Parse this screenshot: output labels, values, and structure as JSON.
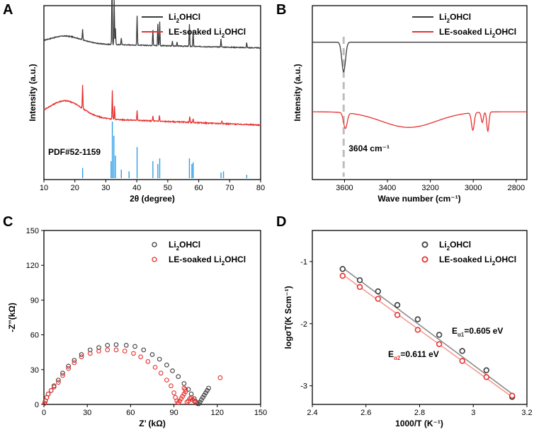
{
  "colors": {
    "black": "#000000",
    "dark": "#3c3c3c",
    "red": "#e8312f",
    "pdf": "#2f9fe6",
    "dash": "#bdbdbd",
    "fit_gray": "#8c8c8c",
    "fit_red": "#f59a90"
  },
  "chart_data": [
    {
      "panel": "A",
      "type": "line",
      "xlabel": "2θ (degree)",
      "ylabel": "Intensity (a.u.)",
      "xlim": [
        10,
        80
      ],
      "xticks": [
        10,
        20,
        30,
        40,
        50,
        60,
        70,
        80
      ],
      "series": [
        {
          "name": "Li2OHCl",
          "label": "Li",
          "sub": "2",
          "tail": "OHCl",
          "color": "#3c3c3c",
          "offset": 0.74,
          "base": 0.8,
          "hump": {
            "center": 17,
            "height": 0.75,
            "width": 7
          },
          "noise": 0.08,
          "peaks": [
            [
              22.5,
              1.1
            ],
            [
              32.0,
              6.3
            ],
            [
              32.7,
              4.5
            ],
            [
              33.1,
              1.6
            ],
            [
              35.0,
              0.7
            ],
            [
              40.1,
              3.0
            ],
            [
              45.2,
              1.6
            ],
            [
              46.8,
              2.2
            ],
            [
              47.4,
              2.4
            ],
            [
              51.5,
              0.5
            ],
            [
              53.0,
              0.4
            ],
            [
              57.0,
              2.2
            ],
            [
              58.2,
              1.6
            ],
            [
              67.2,
              0.8
            ],
            [
              75.5,
              0.5
            ]
          ]
        },
        {
          "name": "LE-soaked Li2OHCl",
          "label": "LE-soaked Li",
          "sub": "2",
          "tail": "OHCl",
          "color": "#e8312f",
          "offset": 0.27,
          "base": 1.6,
          "hump": {
            "center": 17,
            "height": 1.7,
            "width": 7.5
          },
          "noise": 0.1,
          "peaks": [
            [
              22.5,
              2.4
            ],
            [
              32.1,
              2.9
            ],
            [
              32.8,
              1.3
            ],
            [
              40.1,
              1.0
            ],
            [
              45.2,
              0.5
            ],
            [
              47.3,
              0.6
            ],
            [
              57.1,
              0.6
            ],
            [
              58.2,
              0.4
            ],
            [
              67.5,
              0.3
            ]
          ]
        }
      ],
      "reference": {
        "label": "PDF#52-1159",
        "color": "#2f9fe6",
        "lines": [
          [
            22.5,
            0.18
          ],
          [
            31.7,
            0.3
          ],
          [
            32.1,
            1.0
          ],
          [
            32.6,
            0.75
          ],
          [
            33.1,
            0.4
          ],
          [
            35.0,
            0.15
          ],
          [
            37.5,
            0.12
          ],
          [
            40.1,
            0.55
          ],
          [
            45.2,
            0.3
          ],
          [
            46.8,
            0.25
          ],
          [
            47.4,
            0.35
          ],
          [
            57.0,
            0.35
          ],
          [
            57.8,
            0.25
          ],
          [
            58.2,
            0.28
          ],
          [
            67.2,
            0.1
          ],
          [
            68.0,
            0.12
          ],
          [
            75.5,
            0.06
          ]
        ]
      }
    },
    {
      "panel": "B",
      "type": "line",
      "xlabel": "Wave number (cm⁻¹)",
      "ylabel": "Intensity (a.u.)",
      "xlim": [
        3750,
        2750
      ],
      "xticks": [
        3600,
        3400,
        3200,
        3000,
        2800
      ],
      "annotation": {
        "text": "3604 cm⁻¹",
        "x": 3604
      },
      "series": [
        {
          "name": "Li2OHCl",
          "label": "Li",
          "sub": "2",
          "tail": "OHCl",
          "color": "#3c3c3c",
          "baseline": 0.79,
          "bands": [
            [
              3604,
              0.17,
              12
            ]
          ]
        },
        {
          "name": "LE-soaked Li2OHCl",
          "label": "LE-soaked Li",
          "sub": "2",
          "tail": "OHCl",
          "color": "#e8312f",
          "baseline": 0.39,
          "broad": {
            "center": 3300,
            "depth": 0.09,
            "width": 180
          },
          "bands": [
            [
              3596,
              0.09,
              12
            ],
            [
              3002,
              0.1,
              9
            ],
            [
              2958,
              0.06,
              7
            ],
            [
              2932,
              0.11,
              7
            ]
          ]
        }
      ]
    },
    {
      "panel": "C",
      "type": "scatter",
      "xlabel": "Z’ (kΩ)",
      "ylabel": "-Z’’(kΩ)",
      "xlim": [
        0,
        150
      ],
      "ylim": [
        0,
        150
      ],
      "xticks": [
        0,
        30,
        60,
        90,
        120,
        150
      ],
      "yticks": [
        0,
        30,
        60,
        90,
        120,
        150
      ],
      "series": [
        {
          "name": "Li2OHCl",
          "label": "Li",
          "sub": "2",
          "tail": "OHCl",
          "color": "#3c3c3c",
          "points": [
            [
              0.5,
              1
            ],
            [
              1,
              3
            ],
            [
              2,
              6
            ],
            [
              3,
              9
            ],
            [
              5,
              12
            ],
            [
              7,
              16
            ],
            [
              10,
              21
            ],
            [
              13,
              27
            ],
            [
              17,
              33
            ],
            [
              21,
              38
            ],
            [
              26,
              43
            ],
            [
              32,
              47
            ],
            [
              38,
              49
            ],
            [
              44,
              51
            ],
            [
              50,
              51.5
            ],
            [
              57,
              51
            ],
            [
              63,
              50
            ],
            [
              69,
              47
            ],
            [
              75,
              43
            ],
            [
              80,
              39
            ],
            [
              85,
              34
            ],
            [
              89,
              29
            ],
            [
              93,
              24
            ],
            [
              97,
              18
            ],
            [
              100,
              13
            ],
            [
              102,
              9
            ],
            [
              104,
              5
            ],
            [
              105,
              2.5
            ],
            [
              106,
              1
            ],
            [
              107,
              0.5
            ],
            [
              108,
              2
            ],
            [
              109,
              4
            ],
            [
              110,
              6
            ],
            [
              111,
              8
            ],
            [
              112,
              10
            ],
            [
              113,
              12
            ],
            [
              114,
              14
            ]
          ]
        },
        {
          "name": "LE-soaked Li2OHCl",
          "label": "LE-soaked Li",
          "sub": "2",
          "tail": "OHCl",
          "color": "#e8312f",
          "points": [
            [
              0.5,
              1
            ],
            [
              1,
              3
            ],
            [
              2,
              6
            ],
            [
              3,
              9
            ],
            [
              5,
              12
            ],
            [
              7,
              15
            ],
            [
              10,
              19
            ],
            [
              13,
              25
            ],
            [
              17,
              31
            ],
            [
              21,
              36
            ],
            [
              26,
              41
            ],
            [
              32,
              44
            ],
            [
              38,
              46
            ],
            [
              44,
              47
            ],
            [
              50,
              47
            ],
            [
              56,
              46
            ],
            [
              62,
              44
            ],
            [
              67,
              41
            ],
            [
              72,
              37
            ],
            [
              77,
              32
            ],
            [
              81,
              27
            ],
            [
              85,
              21
            ],
            [
              88,
              16
            ],
            [
              90,
              10
            ],
            [
              91,
              6
            ],
            [
              92,
              3
            ],
            [
              93,
              1.5
            ],
            [
              94,
              3
            ],
            [
              95,
              5
            ],
            [
              96,
              7
            ],
            [
              97,
              9
            ],
            [
              98,
              11
            ],
            [
              98,
              13
            ],
            [
              97,
              14
            ],
            [
              99,
              2
            ],
            [
              100,
              3
            ],
            [
              101,
              5
            ],
            [
              102,
              6
            ],
            [
              103,
              4
            ],
            [
              104,
              3
            ],
            [
              105,
              2
            ],
            [
              122,
              23
            ]
          ]
        }
      ]
    },
    {
      "panel": "D",
      "type": "scatter",
      "xlabel": "1000/T (K⁻¹)",
      "ylabel": "logσT(K Scm⁻¹)",
      "xlim": [
        2.4,
        3.2
      ],
      "ylim": [
        -3.3,
        -0.5
      ],
      "xticks": [
        2.4,
        2.6,
        2.8,
        3.0,
        3.2
      ],
      "yticks": [
        -1,
        -2,
        -3
      ],
      "series": [
        {
          "name": "Li2OHCl",
          "label": "Li",
          "sub": "2",
          "tail": "OHCl",
          "color": "#3c3c3c",
          "fit_color": "#8c8c8c",
          "points": [
            [
              2.513,
              -1.12
            ],
            [
              2.577,
              -1.3
            ],
            [
              2.645,
              -1.48
            ],
            [
              2.717,
              -1.7
            ],
            [
              2.793,
              -1.93
            ],
            [
              2.873,
              -2.18
            ],
            [
              2.959,
              -2.44
            ],
            [
              3.049,
              -2.75
            ],
            [
              3.145,
              -3.18
            ]
          ],
          "fit": [
            [
              2.513,
              -1.1
            ],
            [
              3.145,
              -3.13
            ]
          ]
        },
        {
          "name": "LE-soaked Li2OHCl",
          "label": "LE-soaked Li",
          "sub": "2",
          "tail": "OHCl",
          "color": "#e8312f",
          "fit_color": "#f59a90",
          "points": [
            [
              2.513,
              -1.23
            ],
            [
              2.577,
              -1.41
            ],
            [
              2.645,
              -1.6
            ],
            [
              2.717,
              -1.86
            ],
            [
              2.793,
              -2.1
            ],
            [
              2.873,
              -2.33
            ],
            [
              2.959,
              -2.6
            ],
            [
              3.049,
              -2.86
            ],
            [
              3.145,
              -3.16
            ]
          ],
          "fit": [
            [
              2.513,
              -1.21
            ],
            [
              3.145,
              -3.18
            ]
          ]
        }
      ],
      "annotations": [
        {
          "main": "E",
          "sub": "α1",
          "rest": "=0.605 eV",
          "sub_color": "#3c3c3c"
        },
        {
          "main": "E",
          "sub": "α2",
          "rest": "=0.611 eV",
          "sub_color": "#e8312f"
        }
      ]
    }
  ]
}
